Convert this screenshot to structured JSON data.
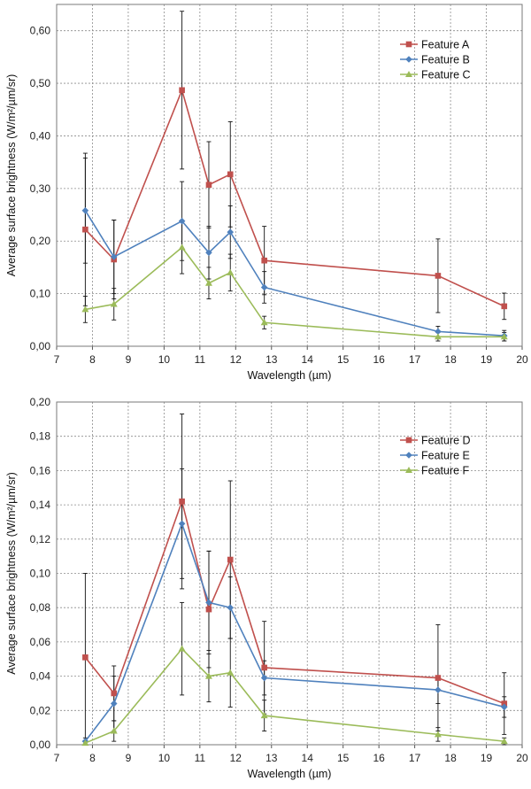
{
  "chart_data": [
    {
      "type": "line",
      "xlabel": "Wavelength (µm)",
      "ylabel": "Average surface brightness (W/m²/µm/sr)",
      "xlim": [
        7,
        20
      ],
      "ylim": [
        0,
        0.65
      ],
      "xticks": [
        "7",
        "8",
        "9",
        "10",
        "11",
        "12",
        "13",
        "14",
        "15",
        "16",
        "17",
        "18",
        "19",
        "20"
      ],
      "yticks": [
        "0,00",
        "0,10",
        "0,20",
        "0,30",
        "0,40",
        "0,50",
        "0,60"
      ],
      "legend_position": "top-right",
      "x": [
        7.8,
        8.6,
        10.5,
        11.25,
        11.85,
        12.8,
        17.65,
        19.5
      ],
      "series": [
        {
          "name": "Feature A",
          "color": "#c0504d",
          "marker": "square",
          "values": [
            0.222,
            0.165,
            0.487,
            0.307,
            0.327,
            0.163,
            0.134,
            0.076
          ],
          "err": [
            0.145,
            0.075,
            0.15,
            0.082,
            0.1,
            0.065,
            0.07,
            0.025
          ]
        },
        {
          "name": "Feature B",
          "color": "#4f81bd",
          "marker": "diamond",
          "values": [
            0.258,
            0.17,
            0.238,
            0.178,
            0.217,
            0.112,
            0.028,
            0.02
          ],
          "err": [
            0.1,
            0.07,
            0.075,
            0.05,
            0.05,
            0.03,
            0.01,
            0.01
          ]
        },
        {
          "name": "Feature C",
          "color": "#9bbb59",
          "marker": "triangle",
          "values": [
            0.07,
            0.08,
            0.188,
            0.12,
            0.14,
            0.045,
            0.018,
            0.018
          ],
          "err": [
            0.025,
            0.03,
            0.05,
            0.03,
            0.035,
            0.012,
            0.008,
            0.008
          ]
        }
      ]
    },
    {
      "type": "line",
      "xlabel": "Wavelength (µm)",
      "ylabel": "Average surface brightness (W/m²/µm/sr)",
      "xlim": [
        7,
        20
      ],
      "ylim": [
        0,
        0.2
      ],
      "xticks": [
        "7",
        "8",
        "9",
        "10",
        "11",
        "12",
        "13",
        "14",
        "15",
        "16",
        "17",
        "18",
        "19",
        "20"
      ],
      "yticks": [
        "0,00",
        "0,02",
        "0,04",
        "0,06",
        "0,08",
        "0,10",
        "0,12",
        "0,14",
        "0,16",
        "0,18",
        "0,20"
      ],
      "legend_position": "top-right",
      "x": [
        7.8,
        8.6,
        10.5,
        11.25,
        11.85,
        12.8,
        17.65,
        19.5
      ],
      "series": [
        {
          "name": "Feature D",
          "color": "#c0504d",
          "marker": "square",
          "values": [
            0.051,
            0.03,
            0.142,
            0.079,
            0.108,
            0.045,
            0.039,
            0.024
          ],
          "err": [
            0.049,
            0.016,
            0.051,
            0.034,
            0.046,
            0.027,
            0.031,
            0.018
          ]
        },
        {
          "name": "Feature E",
          "color": "#4f81bd",
          "marker": "diamond",
          "values": [
            0.002,
            0.024,
            0.129,
            0.083,
            0.08,
            0.039,
            0.032,
            0.022
          ],
          "err": [
            0.002,
            0.016,
            0.032,
            0.03,
            0.018,
            0.01,
            0.008,
            0.006
          ]
        },
        {
          "name": "Feature F",
          "color": "#9bbb59",
          "marker": "triangle",
          "values": [
            0.001,
            0.008,
            0.056,
            0.04,
            0.042,
            0.017,
            0.006,
            0.002
          ],
          "err": [
            0.001,
            0.006,
            0.027,
            0.015,
            0.02,
            0.009,
            0.004,
            0.002
          ]
        }
      ]
    }
  ]
}
